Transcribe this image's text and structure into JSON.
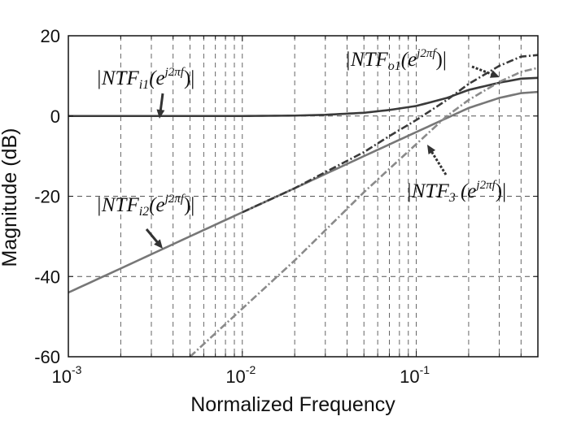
{
  "chart_data": {
    "type": "line",
    "title": "",
    "xlabel": "Normalized Frequency",
    "ylabel": "Magnitude (dB)",
    "xscale": "log",
    "xlim": [
      0.001,
      0.5
    ],
    "ylim": [
      -60,
      20
    ],
    "grid": true,
    "x_ticks": [
      {
        "base": "10",
        "exp": "-3"
      },
      {
        "base": "10",
        "exp": "-2"
      },
      {
        "base": "10",
        "exp": "-1"
      }
    ],
    "y_ticks": [
      "20",
      "0",
      "-20",
      "-40",
      "-60"
    ],
    "y_tick_values": [
      20,
      0,
      -20,
      -40,
      -60
    ],
    "series": [
      {
        "key": "ntf_i1",
        "color": "#3a3a3a",
        "style": "solid",
        "x": [
          0.001,
          0.01,
          0.02,
          0.03,
          0.05,
          0.07,
          0.1,
          0.15,
          0.2,
          0.3,
          0.4,
          0.5
        ],
        "y": [
          0,
          0,
          0.1,
          0.3,
          0.8,
          1.5,
          2.5,
          4.5,
          6.5,
          8.3,
          9.3,
          9.5
        ]
      },
      {
        "key": "ntf_i2",
        "color": "#777777",
        "style": "solid",
        "x": [
          0.001,
          0.002,
          0.005,
          0.01,
          0.02,
          0.05,
          0.1,
          0.15,
          0.2,
          0.3,
          0.4,
          0.5
        ],
        "y": [
          -44,
          -38,
          -30,
          -24,
          -18,
          -10,
          -4,
          -0.5,
          2,
          4.5,
          5.7,
          6
        ]
      },
      {
        "key": "ntf_o1",
        "color": "#3a3a3a",
        "style": "dashdot",
        "x": [
          0.01,
          0.02,
          0.03,
          0.05,
          0.07,
          0.1,
          0.15,
          0.2,
          0.3,
          0.4,
          0.5
        ],
        "y": [
          -24,
          -18,
          -14,
          -9,
          -5,
          -1,
          4,
          8,
          12.5,
          14.8,
          15.2
        ]
      },
      {
        "key": "ntf_3",
        "color": "#8a8a8a",
        "style": "dashdot",
        "x": [
          0.005,
          0.01,
          0.02,
          0.05,
          0.1,
          0.15,
          0.2,
          0.3,
          0.4,
          0.5
        ],
        "y": [
          -60,
          -48,
          -36,
          -19,
          -7,
          0,
          4,
          8.5,
          11,
          12
        ]
      }
    ],
    "annotations": [
      {
        "key": "ntf_i1",
        "label": "|NTF",
        "sub": "i1",
        "open": "(e",
        "sup": "j2πf",
        "close": ")|"
      },
      {
        "key": "ntf_o1",
        "label": "|NTF",
        "sub": "o1",
        "open": "(e",
        "sup": "j2πf",
        "close": ")|"
      },
      {
        "key": "ntf_i2",
        "label": "|NTF",
        "sub": "i2",
        "open": "(e",
        "sup": "j2πf",
        "close": ")|"
      },
      {
        "key": "ntf_3",
        "label": "|NTF",
        "sub": "3",
        "open": " (e",
        "sup": "j2πf",
        "close": ")|"
      }
    ]
  }
}
